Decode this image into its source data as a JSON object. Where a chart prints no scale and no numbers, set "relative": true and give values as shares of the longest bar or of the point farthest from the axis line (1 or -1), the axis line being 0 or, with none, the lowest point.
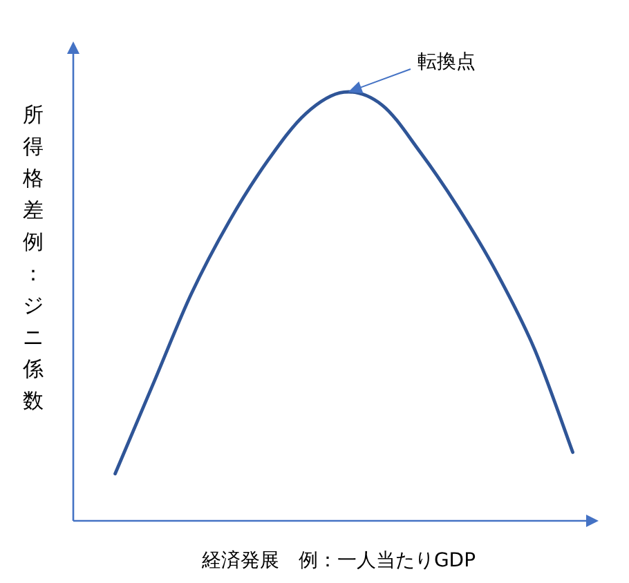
{
  "chart_data": {
    "type": "line",
    "relative": true,
    "xlabel": "経済発展　例：一人当たりGDP",
    "ylabel": "所得格差例：ジニ係数",
    "annotations": [
      "転換点"
    ],
    "categories": [
      null,
      null,
      null,
      null,
      null,
      null,
      null,
      null,
      null,
      null,
      null,
      null,
      null
    ],
    "series": [
      {
        "color": "#2f5597",
        "values": [
          0.11,
          0.32,
          0.53,
          0.7,
          0.84,
          0.95,
          1,
          0.97,
          0.86,
          0.73,
          0.58,
          0.4,
          0.16
        ]
      }
    ]
  }
}
